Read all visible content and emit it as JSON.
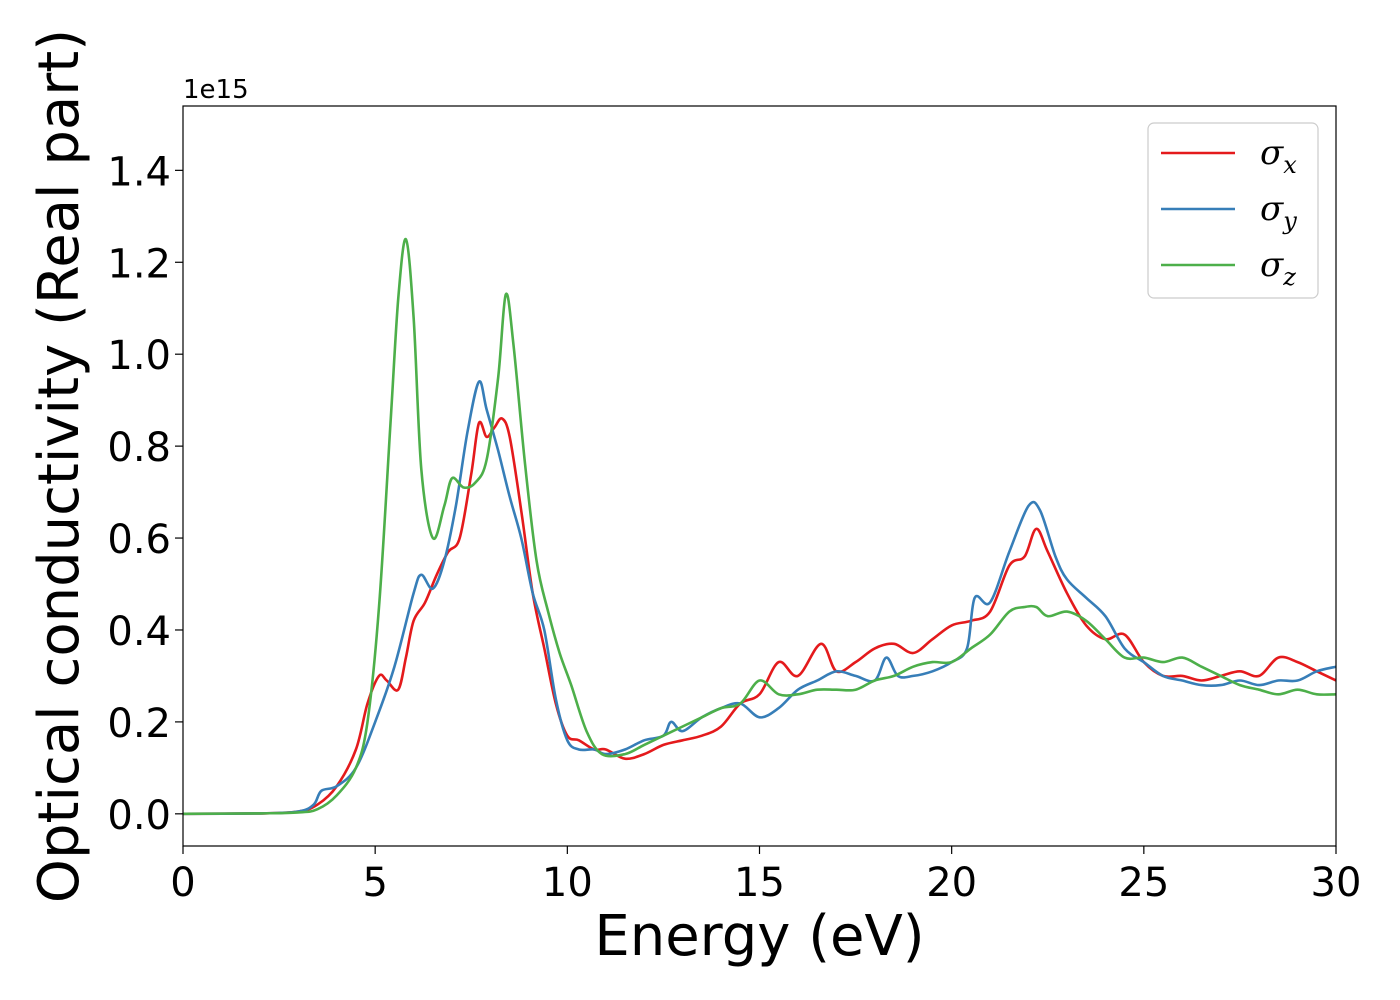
{
  "chart_data": {
    "type": "line",
    "xlabel": "Energy (eV)",
    "ylabel": "Optical conductivity (Real part)",
    "y_offset_label": "1e15",
    "xlim": [
      0,
      30
    ],
    "ylim": [
      -0.07,
      1.54
    ],
    "xticks": [
      0,
      5,
      10,
      15,
      20,
      25,
      30
    ],
    "xtick_labels": [
      "0",
      "5",
      "10",
      "15",
      "20",
      "25",
      "30"
    ],
    "yticks": [
      0.0,
      0.2,
      0.4,
      0.6,
      0.8,
      1.0,
      1.2,
      1.4
    ],
    "ytick_labels": [
      "0.0",
      "0.2",
      "0.4",
      "0.6",
      "0.8",
      "1.0",
      "1.2",
      "1.4"
    ],
    "grid": false,
    "legend_position": "top-right",
    "series": [
      {
        "name": "σx",
        "symbol": "σ",
        "subscript": "x",
        "color": "#e41a1c",
        "x": [
          0,
          2,
          3,
          3.5,
          4,
          4.5,
          4.8,
          5.1,
          5.3,
          5.6,
          5.8,
          6.0,
          6.3,
          6.6,
          6.9,
          7.2,
          7.5,
          7.7,
          7.9,
          8.1,
          8.3,
          8.5,
          8.8,
          9.1,
          9.4,
          9.7,
          10.0,
          10.3,
          10.7,
          11.0,
          11.5,
          12.0,
          12.5,
          13.0,
          13.5,
          14.0,
          14.5,
          15.0,
          15.5,
          16.0,
          16.6,
          17.0,
          17.5,
          18.0,
          18.5,
          19.0,
          19.5,
          20.0,
          20.5,
          21.0,
          21.5,
          21.9,
          22.2,
          22.5,
          23.0,
          23.5,
          24.0,
          24.5,
          25.0,
          25.5,
          26.0,
          26.5,
          27.0,
          27.5,
          28.0,
          28.5,
          29.0,
          29.5,
          30.0
        ],
        "y": [
          0,
          0.001,
          0.005,
          0.02,
          0.06,
          0.14,
          0.24,
          0.3,
          0.29,
          0.27,
          0.34,
          0.42,
          0.46,
          0.52,
          0.57,
          0.6,
          0.74,
          0.85,
          0.82,
          0.84,
          0.86,
          0.82,
          0.66,
          0.48,
          0.36,
          0.24,
          0.17,
          0.16,
          0.14,
          0.14,
          0.12,
          0.13,
          0.15,
          0.16,
          0.17,
          0.19,
          0.24,
          0.26,
          0.33,
          0.3,
          0.37,
          0.31,
          0.33,
          0.36,
          0.37,
          0.35,
          0.38,
          0.41,
          0.42,
          0.44,
          0.54,
          0.56,
          0.62,
          0.57,
          0.48,
          0.41,
          0.38,
          0.39,
          0.33,
          0.3,
          0.3,
          0.29,
          0.3,
          0.31,
          0.3,
          0.34,
          0.33,
          0.31,
          0.29
        ]
      },
      {
        "name": "σy",
        "symbol": "σ",
        "subscript": "y",
        "color": "#377eb8",
        "x": [
          0,
          2,
          3,
          3.4,
          3.6,
          4.0,
          4.5,
          5.0,
          5.5,
          6.0,
          6.2,
          6.5,
          6.8,
          7.1,
          7.4,
          7.7,
          7.9,
          8.2,
          8.5,
          8.8,
          9.1,
          9.4,
          9.7,
          10.0,
          10.3,
          10.7,
          11.0,
          11.5,
          12.0,
          12.5,
          12.7,
          13.0,
          13.5,
          14.0,
          14.5,
          15.0,
          15.5,
          16.0,
          16.5,
          17.0,
          17.5,
          18.0,
          18.3,
          18.6,
          19.0,
          19.5,
          20.0,
          20.4,
          20.6,
          21.0,
          21.5,
          22.0,
          22.3,
          22.7,
          23.0,
          23.5,
          24.0,
          24.5,
          25.0,
          25.5,
          26.0,
          26.5,
          27.0,
          27.5,
          28.0,
          28.5,
          29.0,
          29.5,
          30.0
        ],
        "y": [
          0,
          0.001,
          0.005,
          0.02,
          0.05,
          0.06,
          0.1,
          0.2,
          0.32,
          0.48,
          0.52,
          0.49,
          0.55,
          0.67,
          0.83,
          0.94,
          0.88,
          0.79,
          0.69,
          0.6,
          0.48,
          0.4,
          0.25,
          0.16,
          0.14,
          0.14,
          0.13,
          0.14,
          0.16,
          0.17,
          0.2,
          0.18,
          0.21,
          0.23,
          0.24,
          0.21,
          0.23,
          0.27,
          0.29,
          0.31,
          0.3,
          0.29,
          0.34,
          0.3,
          0.3,
          0.31,
          0.33,
          0.36,
          0.47,
          0.46,
          0.57,
          0.67,
          0.66,
          0.56,
          0.51,
          0.47,
          0.43,
          0.36,
          0.33,
          0.3,
          0.29,
          0.28,
          0.28,
          0.29,
          0.28,
          0.29,
          0.29,
          0.31,
          0.32
        ]
      },
      {
        "name": "σz",
        "symbol": "σ",
        "subscript": "z",
        "color": "#4daf4a",
        "x": [
          0,
          2,
          3,
          3.5,
          4.0,
          4.5,
          4.8,
          5.1,
          5.4,
          5.6,
          5.8,
          6.0,
          6.2,
          6.5,
          6.8,
          7.0,
          7.3,
          7.6,
          7.9,
          8.2,
          8.4,
          8.6,
          8.9,
          9.2,
          9.5,
          9.8,
          10.1,
          10.5,
          10.9,
          11.5,
          12.0,
          12.5,
          13.0,
          13.5,
          14.0,
          14.5,
          15.0,
          15.5,
          16.0,
          16.5,
          17.0,
          17.5,
          18.0,
          18.5,
          19.0,
          19.5,
          20.0,
          20.5,
          21.0,
          21.5,
          21.9,
          22.2,
          22.5,
          23.0,
          23.5,
          24.0,
          24.5,
          25.0,
          25.5,
          26.0,
          26.5,
          27.0,
          27.5,
          28.0,
          28.5,
          29.0,
          29.5,
          30.0
        ],
        "y": [
          0,
          0.001,
          0.003,
          0.01,
          0.04,
          0.1,
          0.2,
          0.45,
          0.85,
          1.12,
          1.25,
          1.08,
          0.75,
          0.6,
          0.67,
          0.73,
          0.71,
          0.72,
          0.77,
          0.95,
          1.13,
          1.02,
          0.76,
          0.55,
          0.44,
          0.35,
          0.28,
          0.18,
          0.13,
          0.13,
          0.15,
          0.17,
          0.19,
          0.21,
          0.23,
          0.24,
          0.29,
          0.26,
          0.26,
          0.27,
          0.27,
          0.27,
          0.29,
          0.3,
          0.32,
          0.33,
          0.33,
          0.36,
          0.39,
          0.44,
          0.45,
          0.45,
          0.43,
          0.44,
          0.42,
          0.38,
          0.34,
          0.34,
          0.33,
          0.34,
          0.32,
          0.3,
          0.28,
          0.27,
          0.26,
          0.27,
          0.26,
          0.26
        ]
      }
    ]
  }
}
